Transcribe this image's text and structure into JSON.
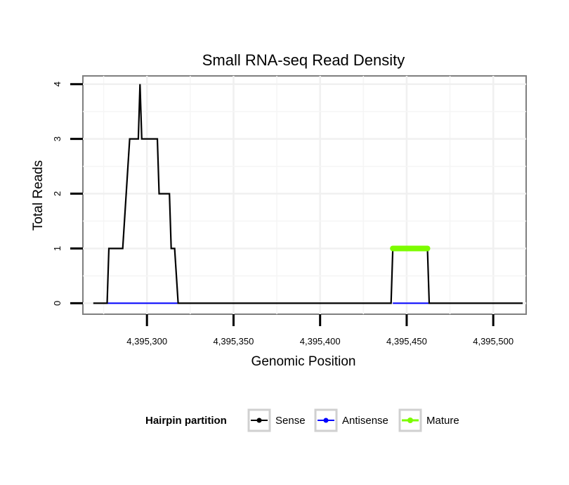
{
  "chart_data": {
    "type": "line",
    "title": "Small RNA-seq Read Density",
    "xlabel": "Genomic Position",
    "ylabel": "Total Reads",
    "xlim": [
      4395263,
      4395519
    ],
    "ylim": [
      -0.2,
      4.15
    ],
    "x_ticks": [
      4395300,
      4395350,
      4395400,
      4395450,
      4395500
    ],
    "x_tick_labels": [
      "4,395,300",
      "4,395,350",
      "4,395,400",
      "4,395,450",
      "4,395,500"
    ],
    "y_ticks": [
      0,
      1,
      2,
      3,
      4
    ],
    "y_tick_labels": [
      "0",
      "1",
      "2",
      "3",
      "4"
    ],
    "grid": true,
    "legend": {
      "title": "Hairpin partition",
      "position": "bottom",
      "entries": [
        "Sense",
        "Antisense",
        "Mature"
      ]
    },
    "series": [
      {
        "name": "Sense",
        "color": "#000000",
        "x": [
          4395269,
          4395277,
          4395278,
          4395285,
          4395286,
          4395290,
          4395291,
          4395295,
          4395296,
          4395297,
          4395298,
          4395306,
          4395307,
          4395313,
          4395314,
          4395315,
          4395316,
          4395318,
          4395319,
          4395441,
          4395442,
          4395442,
          4395462,
          4395463,
          4395517
        ],
        "y": [
          0,
          0,
          1,
          1,
          1,
          3,
          3,
          3,
          4,
          3,
          3,
          3,
          2,
          2,
          1,
          1,
          1,
          0,
          0,
          0,
          1,
          1,
          1,
          0,
          0
        ]
      },
      {
        "name": "Antisense",
        "color": "#0000ff",
        "x": [
          4395277,
          4395318,
          4395442,
          4395463
        ],
        "y": [
          0,
          0,
          0,
          0
        ],
        "segments": [
          [
            0,
            1
          ],
          [
            2,
            3
          ]
        ]
      },
      {
        "name": "Mature",
        "color": "#7cfc00",
        "x": [
          4395442,
          4395462
        ],
        "y": [
          1,
          1
        ]
      }
    ]
  }
}
